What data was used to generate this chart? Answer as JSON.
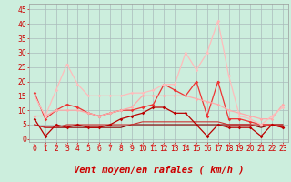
{
  "xlabel": "Vent moyen/en rafales ( km/h )",
  "bg_color": "#cceedd",
  "grid_color": "#aabbbb",
  "x_ticks": [
    0,
    1,
    2,
    3,
    4,
    5,
    6,
    7,
    8,
    9,
    10,
    11,
    12,
    13,
    14,
    15,
    16,
    17,
    18,
    19,
    20,
    21,
    22,
    23
  ],
  "ylim": [
    -1,
    47
  ],
  "yticks": [
    0,
    5,
    10,
    15,
    20,
    25,
    30,
    35,
    40,
    45
  ],
  "series": [
    {
      "y": [
        16,
        7,
        10,
        12,
        11,
        9,
        8,
        9,
        10,
        10,
        11,
        12,
        19,
        17,
        15,
        20,
        8,
        20,
        7,
        7,
        6,
        5,
        5,
        4
      ],
      "color": "#ee3333",
      "lw": 0.9,
      "marker": "D",
      "ms": 1.8
    },
    {
      "y": [
        7,
        1,
        5,
        4,
        5,
        4,
        4,
        5,
        7,
        8,
        9,
        11,
        11,
        9,
        9,
        5,
        1,
        5,
        4,
        4,
        4,
        1,
        5,
        4
      ],
      "color": "#bb0000",
      "lw": 0.9,
      "marker": "D",
      "ms": 1.8
    },
    {
      "y": [
        8,
        8,
        10,
        10,
        10,
        9,
        8,
        9,
        10,
        11,
        15,
        15,
        15,
        15,
        15,
        14,
        13,
        12,
        10,
        9,
        8,
        7,
        7,
        12
      ],
      "color": "#ffaaaa",
      "lw": 0.9,
      "marker": "D",
      "ms": 1.8
    },
    {
      "y": [
        15,
        8,
        17,
        26,
        19,
        15,
        15,
        15,
        15,
        16,
        16,
        17,
        19,
        19,
        30,
        24,
        30,
        41,
        22,
        8,
        7,
        5,
        8,
        11
      ],
      "color": "#ffbbbb",
      "lw": 0.9,
      "marker": "D",
      "ms": 1.8
    },
    {
      "y": [
        5,
        4,
        4,
        4,
        4,
        4,
        4,
        4,
        4,
        5,
        5,
        5,
        5,
        5,
        5,
        5,
        5,
        5,
        5,
        5,
        5,
        4,
        5,
        5
      ],
      "color": "#880000",
      "lw": 0.8,
      "marker": null,
      "ms": 0
    },
    {
      "y": [
        5,
        4,
        4,
        5,
        5,
        5,
        5,
        5,
        5,
        5,
        6,
        6,
        6,
        6,
        6,
        6,
        6,
        6,
        5,
        5,
        5,
        5,
        5,
        5
      ],
      "color": "#cc3333",
      "lw": 0.8,
      "marker": null,
      "ms": 0
    }
  ],
  "arrows": [
    [
      0,
      0
    ],
    [
      1,
      0
    ],
    [
      2,
      0
    ],
    [
      3,
      315
    ],
    [
      4,
      0
    ],
    [
      5,
      0
    ],
    [
      6,
      315
    ],
    [
      7,
      0
    ],
    [
      8,
      0
    ],
    [
      9,
      315
    ],
    [
      10,
      315
    ],
    [
      11,
      315
    ],
    [
      12,
      315
    ],
    [
      13,
      315
    ],
    [
      14,
      315
    ],
    [
      15,
      315
    ],
    [
      16,
      315
    ],
    [
      17,
      315
    ],
    [
      18,
      315
    ],
    [
      19,
      315
    ],
    [
      20,
      315
    ],
    [
      21,
      315
    ],
    [
      22,
      90
    ],
    [
      23,
      45
    ]
  ],
  "xlabel_color": "#cc0000",
  "xlabel_fontsize": 7.5,
  "tick_color": "#cc0000",
  "tick_fontsize": 5.5
}
